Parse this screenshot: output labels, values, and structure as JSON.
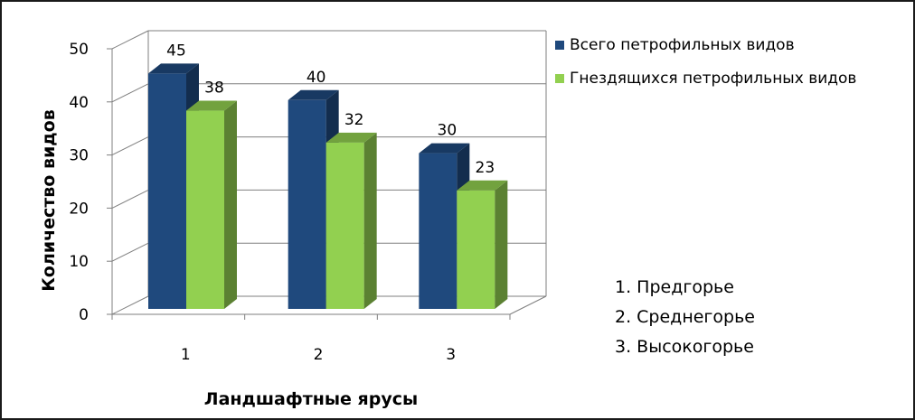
{
  "chart_data": {
    "type": "bar",
    "categories": [
      "1",
      "2",
      "3"
    ],
    "series": [
      {
        "name": "Всего петрофильных видов",
        "values": [
          45,
          40,
          30
        ],
        "color": "#1f497d"
      },
      {
        "name": "Гнездящихся петрофильных видов",
        "values": [
          38,
          32,
          23
        ],
        "color": "#92d050"
      }
    ],
    "xlabel": "Ландшафтные ярусы",
    "ylabel": "Количество видов",
    "ylim": [
      0,
      50
    ],
    "yticks": [
      "0",
      "10",
      "20",
      "30",
      "40",
      "50"
    ],
    "grid": true,
    "legend_position": "top-right",
    "style": "3d-column"
  },
  "notes": [
    "1. Предгорье",
    "2. Среднегорье",
    "3. Высокогорье"
  ]
}
